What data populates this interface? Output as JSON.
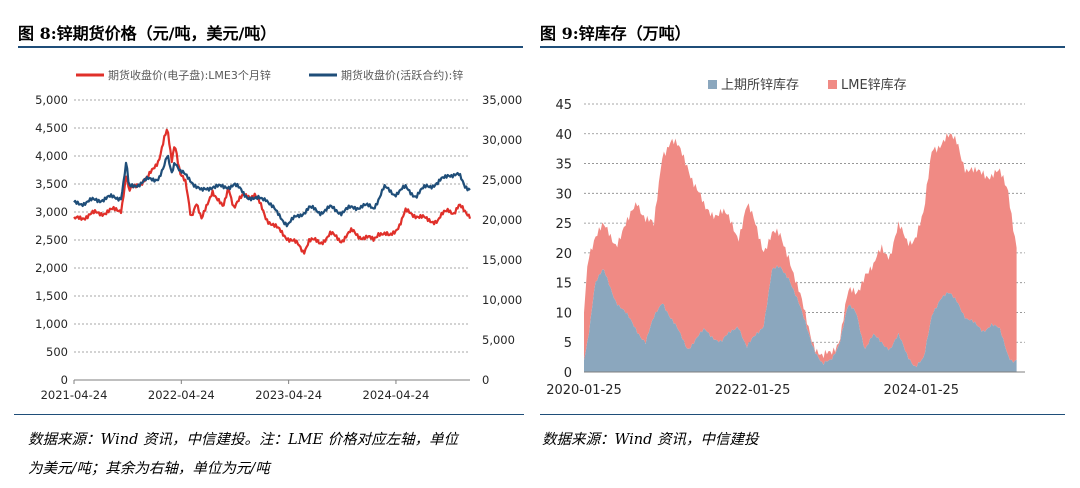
{
  "left": {
    "title": "图 8:锌期货价格（元/吨，美元/吨）",
    "source_line1": "数据来源：Wind 资讯，中信建投。注：LME 价格对应左轴，单位",
    "source_line2": "为美元/吨；其余为右轴，单位为元/吨"
  },
  "right": {
    "title": "图 9:锌库存（万吨）",
    "source": "数据来源：Wind 资讯，中信建投"
  },
  "colors": {
    "accent": "#1f4e79"
  },
  "chart_data": [
    {
      "type": "line",
      "title": "图 8:锌期货价格（元/吨，美元/吨）",
      "x_tick_labels": [
        "2021-04-24",
        "2022-04-24",
        "2023-04-24",
        "2024-04-24"
      ],
      "y_left_ticks": [
        "0",
        "500",
        "1,000",
        "1,500",
        "2,000",
        "2,500",
        "3,000",
        "3,500",
        "4,000",
        "4,500",
        "5,000"
      ],
      "y_right_ticks": [
        "0",
        "5,000",
        "10,000",
        "15,000",
        "20,000",
        "25,000",
        "30,000",
        "35,000"
      ],
      "ylim_left": [
        0,
        5000
      ],
      "ylim_right": [
        0,
        35000
      ],
      "x_domain": [
        2021.31,
        2025.0
      ],
      "gridlines": "horizontal dashed",
      "legend_position": "top",
      "series": [
        {
          "name": "期货收盘价(电子盘):LME3个月锌",
          "axis": "left",
          "color": "#e0302a",
          "x": [
            2021.31,
            2021.45,
            2021.6,
            2021.75,
            2021.8,
            2021.82,
            2021.9,
            2022.0,
            2022.1,
            2022.15,
            2022.18,
            2022.22,
            2022.25,
            2022.3,
            2022.35,
            2022.4,
            2022.45,
            2022.5,
            2022.55,
            2022.6,
            2022.7,
            2022.75,
            2022.8,
            2022.9,
            2023.0,
            2023.05,
            2023.1,
            2023.2,
            2023.3,
            2023.4,
            2023.45,
            2023.5,
            2023.6,
            2023.7,
            2023.8,
            2023.9,
            2024.0,
            2024.1,
            2024.15,
            2024.25,
            2024.35,
            2024.4,
            2024.5,
            2024.6,
            2024.7,
            2024.8,
            2024.85,
            2024.9,
            2024.95,
            2025.0
          ],
          "values": [
            2850,
            2950,
            3000,
            3050,
            3700,
            3350,
            3500,
            3600,
            3950,
            4300,
            4450,
            3900,
            4250,
            3700,
            3500,
            2900,
            3200,
            2850,
            3100,
            3400,
            3050,
            3450,
            3100,
            3300,
            3300,
            3100,
            2900,
            2700,
            2550,
            2400,
            2300,
            2500,
            2450,
            2600,
            2500,
            2650,
            2550,
            2500,
            2650,
            2550,
            2800,
            3000,
            2950,
            2850,
            2850,
            3050,
            3000,
            3100,
            3000,
            2950
          ]
        },
        {
          "name": "期货收盘价(活跃合约):锌",
          "axis": "right",
          "color": "#1f4e79",
          "x": [
            2021.31,
            2021.45,
            2021.6,
            2021.75,
            2021.8,
            2021.82,
            2021.9,
            2022.0,
            2022.1,
            2022.15,
            2022.18,
            2022.22,
            2022.25,
            2022.3,
            2022.4,
            2022.5,
            2022.6,
            2022.7,
            2022.8,
            2022.9,
            2023.0,
            2023.1,
            2023.2,
            2023.3,
            2023.4,
            2023.5,
            2023.6,
            2023.7,
            2023.8,
            2023.9,
            2024.0,
            2024.1,
            2024.2,
            2024.3,
            2024.4,
            2024.5,
            2024.6,
            2024.7,
            2024.8,
            2024.9,
            2024.95,
            2025.0
          ],
          "values": [
            22000,
            22300,
            22700,
            22900,
            27300,
            24000,
            24500,
            25000,
            25300,
            26500,
            28000,
            26000,
            27500,
            26000,
            25000,
            23500,
            24300,
            24000,
            24500,
            23200,
            22500,
            22800,
            20800,
            19500,
            20500,
            21500,
            21000,
            21500,
            21000,
            21500,
            21800,
            21500,
            24000,
            23300,
            24000,
            23000,
            24300,
            24500,
            25800,
            25500,
            24300,
            24000
          ]
        }
      ]
    },
    {
      "type": "area",
      "stacked": true,
      "title": "图 9:锌库存（万吨）",
      "x_tick_labels": [
        "2020-01-25",
        "2022-01-25",
        "2024-01-25"
      ],
      "y_ticks": [
        "0",
        "5",
        "10",
        "15",
        "20",
        "25",
        "30",
        "35",
        "40",
        "45"
      ],
      "ylim": [
        0,
        45
      ],
      "x_domain": [
        2020.07,
        2025.3
      ],
      "gridlines": "horizontal dashed",
      "legend_position": "top",
      "series": [
        {
          "name": "上期所锌库存",
          "color": "#8ba7be",
          "x": [
            2020.07,
            2020.12,
            2020.2,
            2020.3,
            2020.45,
            2020.6,
            2020.7,
            2020.8,
            2020.9,
            2021.0,
            2021.1,
            2021.3,
            2021.5,
            2021.7,
            2021.9,
            2022.0,
            2022.2,
            2022.3,
            2022.4,
            2022.5,
            2022.6,
            2022.7,
            2022.8,
            2022.9,
            2023.0,
            2023.1,
            2023.2,
            2023.3,
            2023.4,
            2023.5,
            2023.6,
            2023.7,
            2023.8,
            2023.9,
            2024.0,
            2024.1,
            2024.2,
            2024.3,
            2024.4,
            2024.5,
            2024.6,
            2024.7,
            2024.8,
            2024.9,
            2025.0,
            2025.1,
            2025.15,
            2025.2
          ],
          "values": [
            2,
            6,
            15,
            17,
            12,
            9,
            7,
            5,
            9,
            12,
            9,
            4,
            7,
            5,
            8,
            4,
            8,
            17,
            17.5,
            16,
            12,
            8,
            4,
            1,
            2,
            5,
            11,
            10,
            4,
            6,
            5,
            4,
            6,
            3,
            1,
            2,
            10,
            12.5,
            13,
            12,
            9,
            8,
            7,
            8,
            7,
            3,
            2,
            2
          ]
        },
        {
          "name": "LME锌库存",
          "color": "#f08a84",
          "x": [
            2020.07,
            2020.12,
            2020.2,
            2020.3,
            2020.45,
            2020.6,
            2020.7,
            2020.8,
            2020.9,
            2021.0,
            2021.1,
            2021.3,
            2021.5,
            2021.7,
            2021.9,
            2022.0,
            2022.2,
            2022.3,
            2022.4,
            2022.5,
            2022.6,
            2022.7,
            2022.8,
            2022.9,
            2023.0,
            2023.1,
            2023.2,
            2023.3,
            2023.4,
            2023.5,
            2023.6,
            2023.7,
            2023.8,
            2023.9,
            2024.0,
            2024.1,
            2024.2,
            2024.3,
            2024.4,
            2024.5,
            2024.6,
            2024.7,
            2024.8,
            2024.9,
            2025.0,
            2025.1,
            2025.15,
            2025.2
          ],
          "values": [
            8,
            14,
            8,
            7,
            10,
            16,
            22,
            21,
            15,
            25,
            30,
            31,
            20,
            22,
            15,
            24,
            13,
            6,
            5,
            4,
            2,
            1,
            1,
            1,
            1,
            1,
            2,
            3,
            13,
            11,
            16,
            16,
            18,
            19,
            22,
            24,
            28,
            26,
            26,
            27,
            25,
            25,
            27,
            25,
            26,
            28,
            24,
            19
          ]
        }
      ]
    }
  ]
}
